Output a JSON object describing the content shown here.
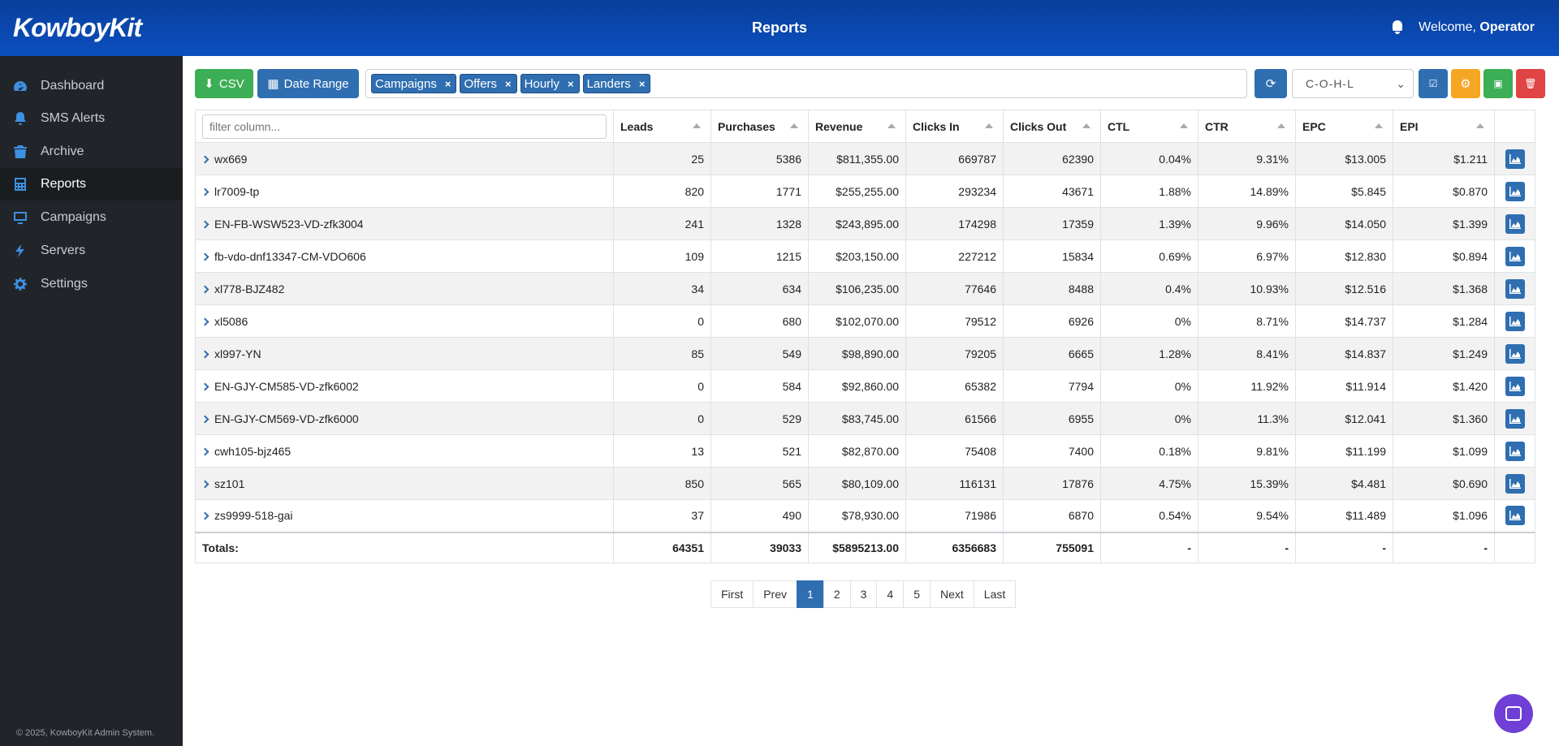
{
  "header": {
    "logo": "KowboyKit",
    "title": "Reports",
    "welcome_prefix": "Welcome, ",
    "user": "Operator"
  },
  "sidebar": {
    "items": [
      {
        "label": "Dashboard",
        "icon": "dashboard-icon"
      },
      {
        "label": "SMS Alerts",
        "icon": "bell-icon"
      },
      {
        "label": "Archive",
        "icon": "trash-icon"
      },
      {
        "label": "Reports",
        "icon": "calculator-icon"
      },
      {
        "label": "Campaigns",
        "icon": "monitor-icon"
      },
      {
        "label": "Servers",
        "icon": "bolt-icon"
      },
      {
        "label": "Settings",
        "icon": "gear-icon"
      }
    ],
    "active": "Reports",
    "footer": "© 2025, KowboyKit Admin System."
  },
  "toolbar": {
    "csv_label": "CSV",
    "date_range_label": "Date Range",
    "tags": [
      "Campaigns",
      "Offers",
      "Hourly",
      "Landers"
    ],
    "select_value": "C-O-H-L"
  },
  "table": {
    "filter_placeholder": "filter column...",
    "columns": [
      "Leads",
      "Purchases",
      "Revenue",
      "Clicks In",
      "Clicks Out",
      "CTL",
      "CTR",
      "EPC",
      "EPI"
    ],
    "rows": [
      [
        "wx669",
        "25",
        "5386",
        "$811,355.00",
        "669787",
        "62390",
        "0.04%",
        "9.31%",
        "$13.005",
        "$1.211"
      ],
      [
        "lr7009-tp",
        "820",
        "1771",
        "$255,255.00",
        "293234",
        "43671",
        "1.88%",
        "14.89%",
        "$5.845",
        "$0.870"
      ],
      [
        "EN-FB-WSW523-VD-zfk3004",
        "241",
        "1328",
        "$243,895.00",
        "174298",
        "17359",
        "1.39%",
        "9.96%",
        "$14.050",
        "$1.399"
      ],
      [
        "fb-vdo-dnf13347-CM-VDO606",
        "109",
        "1215",
        "$203,150.00",
        "227212",
        "15834",
        "0.69%",
        "6.97%",
        "$12.830",
        "$0.894"
      ],
      [
        "xl778-BJZ482",
        "34",
        "634",
        "$106,235.00",
        "77646",
        "8488",
        "0.4%",
        "10.93%",
        "$12.516",
        "$1.368"
      ],
      [
        "xl5086",
        "0",
        "680",
        "$102,070.00",
        "79512",
        "6926",
        "0%",
        "8.71%",
        "$14.737",
        "$1.284"
      ],
      [
        "xl997-YN",
        "85",
        "549",
        "$98,890.00",
        "79205",
        "6665",
        "1.28%",
        "8.41%",
        "$14.837",
        "$1.249"
      ],
      [
        "EN-GJY-CM585-VD-zfk6002",
        "0",
        "584",
        "$92,860.00",
        "65382",
        "7794",
        "0%",
        "11.92%",
        "$11.914",
        "$1.420"
      ],
      [
        "EN-GJY-CM569-VD-zfk6000",
        "0",
        "529",
        "$83,745.00",
        "61566",
        "6955",
        "0%",
        "11.3%",
        "$12.041",
        "$1.360"
      ],
      [
        "cwh105-bjz465",
        "13",
        "521",
        "$82,870.00",
        "75408",
        "7400",
        "0.18%",
        "9.81%",
        "$11.199",
        "$1.099"
      ],
      [
        "sz101",
        "850",
        "565",
        "$80,109.00",
        "116131",
        "17876",
        "4.75%",
        "15.39%",
        "$4.481",
        "$0.690"
      ],
      [
        "zs9999-518-gai",
        "37",
        "490",
        "$78,930.00",
        "71986",
        "6870",
        "0.54%",
        "9.54%",
        "$11.489",
        "$1.096"
      ]
    ],
    "totals_label": "Totals:",
    "totals": [
      "64351",
      "39033",
      "$5895213.00",
      "6356683",
      "755091",
      "-",
      "-",
      "-",
      "-"
    ]
  },
  "pagination": {
    "items": [
      "First",
      "Prev",
      "1",
      "2",
      "3",
      "4",
      "5",
      "Next",
      "Last"
    ],
    "active": "1"
  }
}
